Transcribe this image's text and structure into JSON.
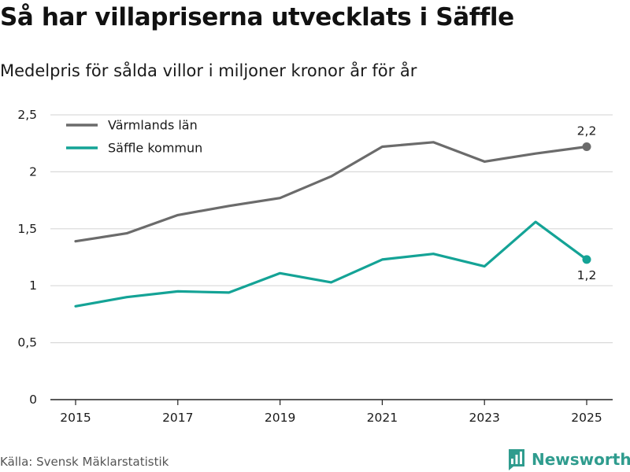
{
  "header": {
    "title": "Så har villapriserna utvecklats i Säffle",
    "subtitle": "Medelpris för sålda villor i miljoner kronor år för år"
  },
  "footer": {
    "source": "Källa: Svensk Mäklarstatistik",
    "brand": "Newsworthy"
  },
  "colors": {
    "varmland": "#6b6b6b",
    "saffle": "#14a396",
    "grid": "#d9d9d9",
    "axis": "#222222",
    "brand": "#2f9c8e"
  },
  "chart_data": {
    "type": "line",
    "title": "Så har villapriserna utvecklats i Säffle",
    "subtitle": "Medelpris för sålda villor i miljoner kronor år för år",
    "xlabel": "",
    "ylabel": "",
    "x": [
      2015,
      2016,
      2017,
      2018,
      2019,
      2020,
      2021,
      2022,
      2023,
      2024,
      2025
    ],
    "xticks": [
      2015,
      2017,
      2019,
      2021,
      2023,
      2025
    ],
    "ylim": [
      0,
      2.5
    ],
    "yticks": [
      {
        "value": 0,
        "label": "0"
      },
      {
        "value": 0.5,
        "label": "0,5"
      },
      {
        "value": 1,
        "label": "1"
      },
      {
        "value": 1.5,
        "label": "1,5"
      },
      {
        "value": 2,
        "label": "2"
      },
      {
        "value": 2.5,
        "label": "2,5"
      }
    ],
    "grid": true,
    "legend": "top-left",
    "series": [
      {
        "name": "Värmlands län",
        "color": "#6b6b6b",
        "values": [
          1.39,
          1.46,
          1.62,
          1.7,
          1.77,
          1.96,
          2.22,
          2.26,
          2.09,
          2.16,
          2.22
        ],
        "end_label": "2,2",
        "end_label_pos": "above"
      },
      {
        "name": "Säffle kommun",
        "color": "#14a396",
        "values": [
          0.82,
          0.9,
          0.95,
          0.94,
          1.11,
          1.03,
          1.23,
          1.28,
          1.17,
          1.56,
          1.23
        ],
        "end_label": "1,2",
        "end_label_pos": "below"
      }
    ]
  }
}
